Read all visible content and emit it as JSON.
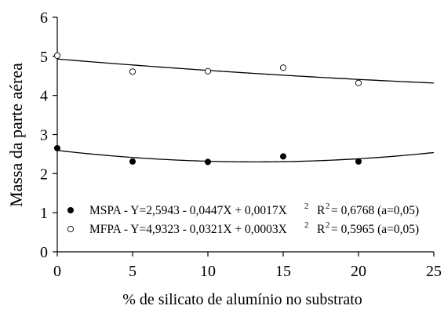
{
  "chart_data": {
    "type": "scatter",
    "title": "",
    "xlabel": "% de silicato de alumínio no substrato",
    "ylabel": "Massa da parte aérea",
    "xlim": [
      0,
      25
    ],
    "ylim": [
      0,
      6
    ],
    "xticks": [
      0,
      5,
      10,
      15,
      20,
      25
    ],
    "yticks": [
      0,
      1,
      2,
      3,
      4,
      5,
      6
    ],
    "grid": false,
    "legend_position": "bottom-left",
    "series": [
      {
        "name": "MSPA",
        "marker": "filled-circle",
        "color": "#000000",
        "x": [
          0,
          5,
          10,
          15,
          20
        ],
        "y": [
          2.65,
          2.31,
          2.3,
          2.44,
          2.31
        ],
        "fit": {
          "a": 2.5943,
          "b": -0.0447,
          "c": 0.0017
        },
        "legend_label": "MSPA - Y=2,5943 - 0,0447X + 0,0017X",
        "legend_exp": "2",
        "r2_label": "R",
        "r2_exp": "2",
        "r2_value": "= 0,6768 (a=0,05)"
      },
      {
        "name": "MFPA",
        "marker": "open-circle",
        "color": "#000000",
        "x": [
          0,
          5,
          10,
          15,
          20
        ],
        "y": [
          5.02,
          4.61,
          4.62,
          4.71,
          4.32
        ],
        "fit": {
          "a": 4.9323,
          "b": -0.0321,
          "c": 0.0003
        },
        "legend_label": "MFPA  - Y=4,9323 - 0,0321X + 0,0003X",
        "legend_exp": "2",
        "r2_label": "R",
        "r2_exp": "2",
        "r2_value": "= 0,5965 (a=0,05)"
      }
    ]
  }
}
